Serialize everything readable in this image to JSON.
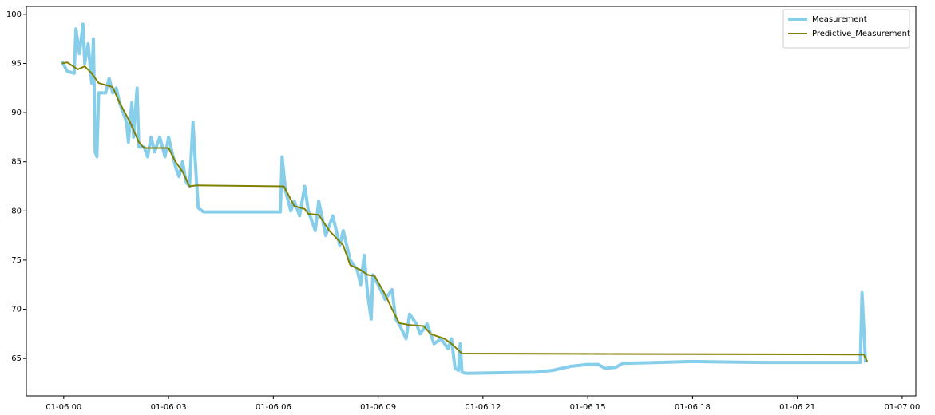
{
  "chart_data": {
    "type": "line",
    "xlim": [
      -1.07,
      24.39
    ],
    "ylim": [
      61.2,
      100.8
    ],
    "xticks": [
      {
        "value": 0,
        "label": "01-06 00"
      },
      {
        "value": 3,
        "label": "01-06 03"
      },
      {
        "value": 6,
        "label": "01-06 06"
      },
      {
        "value": 9,
        "label": "01-06 09"
      },
      {
        "value": 12,
        "label": "01-06 12"
      },
      {
        "value": 15,
        "label": "01-06 15"
      },
      {
        "value": 18,
        "label": "01-06 18"
      },
      {
        "value": 21,
        "label": "01-06 21"
      },
      {
        "value": 24,
        "label": "01-07 00"
      }
    ],
    "yticks": [
      65,
      70,
      75,
      80,
      85,
      90,
      95,
      100
    ],
    "legend": "upper right",
    "series": [
      {
        "name": "Measurement",
        "color": "#87ceeb",
        "width": 4,
        "x": [
          -0.05,
          0.1,
          0.3,
          0.35,
          0.45,
          0.55,
          0.6,
          0.7,
          0.8,
          0.85,
          0.9,
          0.95,
          1.0,
          1.2,
          1.3,
          1.4,
          1.5,
          1.6,
          1.7,
          1.8,
          1.85,
          1.95,
          2.0,
          2.1,
          2.15,
          2.3,
          2.4,
          2.5,
          2.6,
          2.75,
          2.9,
          3.0,
          3.1,
          3.2,
          3.3,
          3.4,
          3.5,
          3.6,
          3.7,
          3.8,
          3.85,
          4.0,
          6.2,
          6.25,
          6.35,
          6.5,
          6.6,
          6.75,
          6.9,
          7.0,
          7.2,
          7.3,
          7.5,
          7.7,
          7.9,
          8.0,
          8.2,
          8.4,
          8.5,
          8.6,
          8.7,
          8.8,
          8.85,
          9.0,
          9.2,
          9.4,
          9.5,
          9.6,
          9.8,
          9.9,
          10.1,
          10.2,
          10.4,
          10.6,
          10.8,
          11.0,
          11.1,
          11.2,
          11.3,
          11.35,
          11.4,
          11.5,
          13.5,
          14.0,
          14.5,
          15.0,
          15.3,
          15.5,
          15.8,
          16.0,
          17.0,
          18.0,
          20.0,
          22.0,
          22.8,
          22.85,
          22.95
        ],
        "values": [
          95.2,
          94.2,
          94.0,
          98.5,
          96,
          99,
          95,
          97,
          93,
          97.5,
          86,
          85.5,
          92,
          92,
          93.5,
          92,
          92.5,
          91,
          90,
          89,
          87,
          91,
          87.5,
          92.5,
          86.5,
          86.5,
          85.5,
          87.5,
          86,
          87.5,
          85.5,
          87.5,
          86,
          84.5,
          83.5,
          85,
          83,
          82.5,
          89,
          83,
          80.3,
          79.9,
          79.9,
          85.5,
          82,
          80,
          81,
          79.5,
          82.5,
          80,
          78,
          81,
          77.5,
          79.5,
          76.5,
          78,
          75,
          74,
          72.5,
          75.5,
          71.5,
          69,
          73.5,
          72.5,
          71,
          72,
          69,
          68.5,
          67,
          69.5,
          68.5,
          67.5,
          68.5,
          66.5,
          67,
          66,
          67,
          64,
          63.8,
          66.5,
          63.6,
          63.5,
          63.6,
          63.8,
          64.2,
          64.4,
          64.4,
          64.0,
          64.1,
          64.5,
          64.6,
          64.7,
          64.6,
          64.6,
          64.6,
          71.7,
          64.6
        ]
      },
      {
        "name": "Predictive_Measurement",
        "color": "#808000",
        "width": 2,
        "x": [
          -0.05,
          0.1,
          0.4,
          0.6,
          0.8,
          1.0,
          1.4,
          1.6,
          1.9,
          2.15,
          2.3,
          3.0,
          3.2,
          3.4,
          3.6,
          3.8,
          6.3,
          6.6,
          6.9,
          7.0,
          7.3,
          7.6,
          8.0,
          8.2,
          8.5,
          8.7,
          8.9,
          9.2,
          9.4,
          9.6,
          9.9,
          10.3,
          10.5,
          10.9,
          11.1,
          11.4,
          22.8,
          22.9,
          23.0
        ],
        "values": [
          95.0,
          95.1,
          94.4,
          94.7,
          94,
          93,
          92.6,
          91,
          89,
          87,
          86.4,
          86.4,
          85,
          84,
          82.5,
          82.6,
          82.5,
          80.5,
          80.2,
          79.7,
          79.6,
          78,
          76.5,
          74.5,
          74,
          73.5,
          73.4,
          71.5,
          70,
          68.6,
          68.4,
          68.3,
          67.5,
          67.0,
          66.5,
          65.5,
          65.4,
          65.4,
          64.7
        ]
      }
    ]
  }
}
